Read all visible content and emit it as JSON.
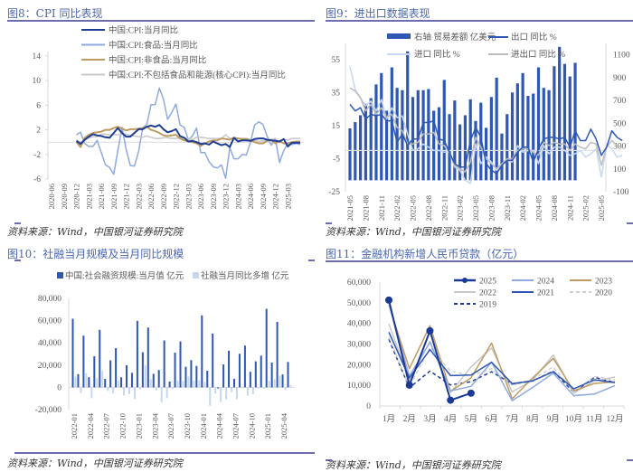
{
  "source_text": "资料来源：Wind，中国银河证券研究院",
  "chart_data": [
    {
      "id": "fig8",
      "type": "line",
      "title": "图8：CPI 同比表现",
      "xlabel": "",
      "ylabel": "",
      "ylim": [
        -6,
        14
      ],
      "yticks": [
        14,
        10,
        6,
        2,
        -2,
        -6
      ],
      "xtick_labels": [
        "2020-06",
        "2020-09",
        "2020-12",
        "2021-03",
        "2021-06",
        "2021-09",
        "2021-12",
        "2022-03",
        "2022-06",
        "2022-09",
        "2022-12",
        "2023-03",
        "2023-06",
        "2023-09",
        "2023-12",
        "2024-03",
        "2024-06",
        "2024-09",
        "2024-12",
        "2025-03"
      ],
      "x_start": "2020-12",
      "legend_position": "top",
      "series": [
        {
          "name": "中国:CPI:当月同比",
          "color": "#1f3d94",
          "width": 2,
          "values": [
            0.2,
            -0.3,
            0.4,
            0.9,
            1.3,
            1.1,
            1.0,
            0.8,
            0.7,
            1.5,
            2.3,
            1.5,
            0.9,
            0.9,
            1.5,
            2.1,
            2.1,
            2.5,
            2.7,
            2.5,
            2.8,
            2.1,
            1.6,
            1.8,
            2.1,
            1.0,
            0.7,
            0.1,
            0.2,
            0.0,
            -0.3,
            -0.2,
            -0.4,
            0.1,
            -0.2,
            -0.5,
            -0.3,
            -0.8,
            0.7,
            0.1,
            0.3,
            0.3,
            0.2,
            0.5,
            0.6,
            0.6,
            0.4,
            0.3,
            0.2,
            0.1,
            0.5,
            -0.7,
            -0.1,
            -0.1,
            -0.1
          ]
        },
        {
          "name": "中国:CPI:食品:当月同比",
          "color": "#8faadc",
          "width": 1.5,
          "values": [
            1.2,
            1.6,
            -0.2,
            -0.7,
            -0.7,
            0.3,
            -1.7,
            -3.7,
            -4.1,
            -5.2,
            -1.4,
            2.4,
            -1.2,
            -3.8,
            -3.9,
            -1.5,
            2.3,
            2.9,
            6.1,
            6.1,
            8.8,
            7.0,
            3.7,
            4.8,
            6.2,
            2.8,
            2.4,
            0.4,
            1.0,
            2.3,
            -1.7,
            -1.7,
            -3.2,
            -4.0,
            -4.2,
            -3.7,
            -5.9,
            -0.9,
            -2.7,
            -2.7,
            -2.0,
            -2.1,
            0.0,
            2.8,
            3.3,
            2.9,
            1.0,
            -0.5,
            0.5,
            -3.3,
            -1.4,
            -0.2,
            -0.4,
            -0.2,
            -0.4
          ]
        },
        {
          "name": "中国:CPI:非食品:当月同比",
          "color": "#bf9b63",
          "width": 2,
          "values": [
            0.0,
            -0.8,
            0.7,
            1.2,
            1.5,
            1.6,
            1.7,
            2.0,
            2.0,
            2.3,
            2.5,
            2.2,
            1.9,
            2.1,
            2.1,
            2.2,
            2.3,
            2.5,
            2.0,
            1.8,
            1.5,
            1.1,
            1.0,
            1.1,
            1.2,
            0.6,
            0.3,
            0.1,
            0.0,
            -0.2,
            -0.6,
            -0.2,
            0.1,
            0.3,
            0.3,
            0.6,
            0.5,
            0.4,
            0.7,
            0.6,
            0.5,
            0.5,
            0.3,
            0.0,
            -0.2,
            -0.2,
            0.2,
            0.4,
            -0.2,
            0.2,
            -0.2,
            -0.2,
            0.0,
            0.1,
            0.1
          ]
        },
        {
          "name": "中国:CPI:不包括食品和能源(核心CPI):当月同比",
          "color": "#c8c8c8",
          "width": 1.5,
          "values": [
            0.4,
            0.0,
            0.3,
            0.7,
            0.9,
            0.9,
            1.3,
            1.3,
            1.2,
            1.2,
            1.2,
            1.3,
            1.3,
            1.1,
            1.0,
            0.9,
            0.8,
            1.0,
            0.8,
            0.6,
            0.6,
            0.7,
            0.7,
            0.6,
            0.6,
            0.7,
            0.7,
            0.6,
            0.4,
            0.8,
            0.8,
            0.7,
            0.6,
            0.6,
            0.6,
            0.6,
            1.2,
            0.6,
            0.7,
            0.6,
            0.6,
            0.6,
            0.4,
            0.3,
            0.1,
            0.2,
            0.3,
            0.4,
            0.6,
            -0.1,
            0.5,
            0.3,
            0.6,
            0.6,
            0.6
          ]
        }
      ]
    },
    {
      "id": "fig9",
      "type": "bar",
      "title": "图9：进出口数据表现",
      "ylim_left": [
        -25,
        65
      ],
      "yticks_left": [
        55,
        35,
        15,
        -5,
        -25
      ],
      "ylim_right": [
        -100,
        1200
      ],
      "yticks_right": [
        1100,
        900,
        700,
        500,
        300,
        100,
        -100
      ],
      "xtick_labels": [
        "2021-05",
        "2021-08",
        "2021-11",
        "2022-02",
        "2022-05",
        "2022-08",
        "2022-11",
        "2023-02",
        "2023-05",
        "2023-08",
        "2023-11",
        "2024-02",
        "2024-05",
        "2024-08",
        "2024-11",
        "2025-02",
        "2025-05"
      ],
      "x_start": "2021-05",
      "legend_position": "top",
      "bars": {
        "name": "右轴 贸易差额 亿美元",
        "color": "#2e58b4",
        "axis": "right",
        "values": [
          455,
          510,
          570,
          670,
          720,
          840,
          940,
          610,
          990,
          810,
          790,
          1130,
          730,
          790,
          790,
          800,
          610,
          640,
          880,
          580,
          700,
          490,
          570,
          710,
          520,
          680,
          460,
          730,
          900,
          410,
          580,
          770,
          850,
          940,
          740,
          760,
          990,
          810,
          790,
          1000,
          1170,
          1020,
          910,
          1030
        ]
      },
      "series": [
        {
          "name": "出口 同比 %",
          "color": "#2e58b4",
          "width": 1.5,
          "axis": "left",
          "values": [
            28,
            24,
            26,
            19,
            22,
            21,
            22,
            18,
            18,
            5,
            10,
            3,
            7,
            7,
            17,
            17,
            18,
            7,
            6,
            -1,
            -8,
            -10,
            -10,
            6,
            14,
            8,
            -8,
            -12,
            -14,
            -9,
            -6,
            -6,
            -1,
            2,
            2,
            -7,
            1,
            7,
            8,
            8,
            7,
            8,
            2,
            12,
            6,
            6,
            13,
            7,
            -3,
            2,
            12,
            8,
            6
          ]
        },
        {
          "name": "进口 同比 %",
          "color": "#c6d7f0",
          "width": 1.5,
          "axis": "left",
          "values": [
            51,
            37,
            32,
            27,
            30,
            24,
            31,
            19,
            26,
            20,
            21,
            10,
            0,
            1,
            4,
            2,
            0,
            0,
            -1,
            -1,
            -10,
            -12,
            -18,
            -20,
            4,
            -8,
            -4,
            -7,
            -12,
            -9,
            -6,
            -7,
            3,
            -1,
            0,
            0,
            -8,
            3,
            -2,
            2,
            2,
            0,
            -3,
            -2,
            0,
            -4,
            -2,
            1,
            -16,
            4,
            1,
            -4,
            -3
          ]
        },
        {
          "name": "进出口 同比 %",
          "color": "#bcbcbc",
          "width": 1.5,
          "axis": "left",
          "values": [
            38,
            36,
            32,
            24,
            28,
            22,
            26,
            20,
            22,
            14,
            12,
            4,
            4,
            5,
            10,
            10,
            11,
            4,
            3,
            -1,
            -9,
            -11,
            -13,
            -7,
            8,
            2,
            -5,
            -8,
            -11,
            -8,
            -5,
            -5,
            0,
            1,
            1,
            -1,
            -3,
            5,
            3,
            5,
            4,
            4,
            0,
            4,
            2,
            1,
            5,
            4,
            -9,
            2,
            6,
            3,
            2
          ]
        }
      ]
    },
    {
      "id": "fig10",
      "type": "bar",
      "title": "图10：社融当月规模及当月同比规模",
      "ylim": [
        -20000,
        80000
      ],
      "yticks": [
        80000,
        60000,
        40000,
        20000,
        0,
        -20000
      ],
      "ytick_labels": [
        "80,000",
        "60,000",
        "40,000",
        "20,000",
        "0",
        "-20,000"
      ],
      "xtick_labels": [
        "2022-01",
        "2022-04",
        "2022-07",
        "2022-10",
        "2023-01",
        "2023-04",
        "2023-07",
        "2023-10",
        "2024-01",
        "2024-04",
        "2024-07",
        "2024-10",
        "2025-01",
        "2025-04"
      ],
      "x_start": "2022-01",
      "legend_position": "top",
      "series": [
        {
          "name": "中国:社会融资规模:当月值 亿元",
          "color": "#2e58b4",
          "values": [
            61700,
            11900,
            46500,
            9100,
            28000,
            51700,
            7600,
            24300,
            35300,
            9100,
            19900,
            13100,
            59800,
            31600,
            53800,
            12200,
            15600,
            42200,
            5300,
            31200,
            41300,
            18500,
            24500,
            19300,
            64700,
            15000,
            48400,
            -1000,
            20600,
            33000,
            7700,
            30200,
            37600,
            14000,
            23400,
            28500,
            70600,
            22300,
            58900,
            11600,
            22800
          ]
        },
        {
          "name": "社融当月同比多增 亿元",
          "color": "#c6d7f0",
          "values": [
            9800,
            -5200,
            12800,
            -9700,
            8300,
            14700,
            -3200,
            -5400,
            6100,
            -7400,
            -6100,
            -10500,
            -1900,
            19700,
            7400,
            -2800,
            -13300,
            -9700,
            -1600,
            6100,
            5900,
            9700,
            6000,
            6300,
            4900,
            -16600,
            -5400,
            -13300,
            -10700,
            -4200,
            -10700,
            -800,
            -7500,
            -6200,
            -1000,
            -1200,
            5900,
            7300,
            10500,
            -2400,
            2200
          ]
        }
      ]
    },
    {
      "id": "fig11",
      "type": "line",
      "title": "图11：金融机构新增人民币贷款（亿元）",
      "ylim": [
        0,
        60000
      ],
      "yticks": [
        60000,
        50000,
        40000,
        30000,
        20000,
        10000,
        0
      ],
      "ytick_labels": [
        "60,000",
        "50,000",
        "40,000",
        "30,000",
        "20,000",
        "10,000",
        "0"
      ],
      "categories": [
        "1月",
        "2月",
        "3月",
        "4月",
        "5月",
        "6月",
        "7月",
        "8月",
        "9月",
        "10月",
        "11月",
        "12月"
      ],
      "legend_position": "top-right",
      "series": [
        {
          "name": "2025",
          "color": "#1a3a96",
          "width": 2,
          "dash": "",
          "marker": true,
          "values": [
            51300,
            10100,
            36400,
            2800,
            6200
          ]
        },
        {
          "name": "2024",
          "color": "#8faadc",
          "width": 1.5,
          "dash": "",
          "marker": false,
          "values": [
            49200,
            14500,
            30900,
            7300,
            9500,
            21300,
            2600,
            9000,
            15900,
            5000,
            5800,
            9900
          ]
        },
        {
          "name": "2023",
          "color": "#bf9b63",
          "width": 1.5,
          "dash": "",
          "marker": false,
          "values": [
            49000,
            18100,
            38900,
            7200,
            13600,
            30500,
            3500,
            13600,
            23100,
            7400,
            10900,
            11700
          ]
        },
        {
          "name": "2022",
          "color": "#c8c8c8",
          "width": 1.5,
          "dash": "",
          "marker": false,
          "values": [
            39800,
            12300,
            31300,
            6500,
            18900,
            28100,
            6800,
            12500,
            24700,
            6200,
            12100,
            14000
          ]
        },
        {
          "name": "2021",
          "color": "#2e58b4",
          "width": 1.5,
          "dash": "",
          "marker": false,
          "values": [
            35800,
            13600,
            27300,
            14700,
            15000,
            21200,
            10800,
            12200,
            16600,
            8300,
            12700,
            11300
          ]
        },
        {
          "name": "2020",
          "color": "#c8c8c8",
          "width": 1.2,
          "dash": "4,3",
          "marker": false,
          "values": [
            33400,
            9057,
            28500,
            17000,
            14800,
            18100,
            9927,
            12800,
            19000,
            6898,
            14300,
            12600
          ]
        },
        {
          "name": "2019",
          "color": "#1f3d94",
          "width": 1.5,
          "dash": "4,3",
          "marker": false,
          "values": [
            32300,
            8858,
            16900,
            10200,
            11800,
            16600,
            10600,
            12100,
            16900,
            6613,
            13900,
            11400
          ]
        }
      ]
    }
  ]
}
